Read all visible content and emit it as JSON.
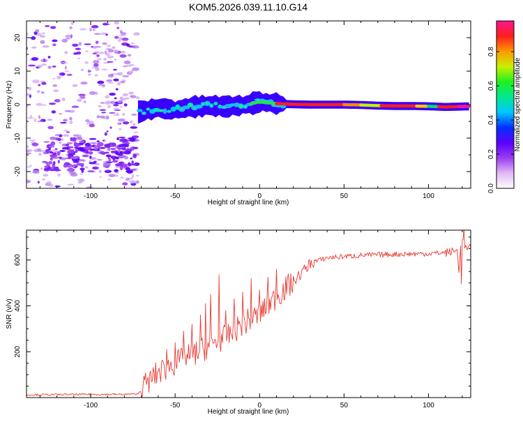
{
  "title": "KOM5.2026.039.11.10.G14",
  "chart_data": [
    {
      "type": "heatmap",
      "name": "spectrogram",
      "xlabel": "Height of straight line (km)",
      "ylabel": "Frequency (Hz)",
      "xlim": [
        -138,
        125
      ],
      "ylim": [
        -25,
        25
      ],
      "xticks": [
        -100,
        -50,
        0,
        50,
        100
      ],
      "yticks": [
        -20,
        -10,
        0,
        10,
        20
      ],
      "ridge": {
        "x": [
          -72,
          -60,
          -50,
          -40,
          -30,
          -20,
          -10,
          0,
          10,
          20,
          30,
          40,
          50,
          60,
          70,
          80,
          90,
          100,
          110,
          125
        ],
        "freq": [
          -2.2,
          -1.0,
          -1.6,
          -0.7,
          -0.3,
          -0.6,
          -0.2,
          0.8,
          0.3,
          0.1,
          0.0,
          0.0,
          0.0,
          -0.1,
          -0.3,
          -0.4,
          -0.4,
          -0.5,
          -0.7,
          -0.5
        ]
      },
      "noise_region": {
        "x_range": [
          -138,
          -72
        ],
        "cluster_center_x": -100,
        "cluster_center_freq": -15
      }
    },
    {
      "type": "colorbar",
      "label": "Normalized spectral amplitude",
      "ticks": [
        "0.0",
        "0.2",
        "0.4",
        "0.6",
        "0.8"
      ],
      "tick_values": [
        0.0,
        0.2,
        0.4,
        0.6,
        0.8
      ],
      "range": [
        0,
        0.98
      ],
      "colors": [
        "#ffffff",
        "#e0b8f4",
        "#9a3cf0",
        "#5a00ff",
        "#0030ff",
        "#00c8ff",
        "#00e890",
        "#20f020",
        "#c8f000",
        "#ff9800",
        "#ff1e1e",
        "#ff1493"
      ]
    },
    {
      "type": "line",
      "name": "snr",
      "xlabel": "Height of straight line (km)",
      "ylabel": "SNR (v/v)",
      "xlim": [
        -138,
        125
      ],
      "ylim": [
        0,
        730
      ],
      "xticks": [
        -100,
        -50,
        0,
        50,
        100
      ],
      "yticks": [
        200,
        400,
        600
      ],
      "series": [
        {
          "name": "SNR",
          "color": "#e83a32",
          "anchors_x": [
            -138,
            -120,
            -100,
            -80,
            -72,
            -68,
            -60,
            -50,
            -40,
            -30,
            -20,
            -10,
            0,
            10,
            20,
            30,
            40,
            60,
            80,
            100,
            110,
            117,
            118,
            119,
            120,
            121,
            125
          ],
          "anchors_y": [
            12,
            13,
            14,
            14,
            16,
            55,
            110,
            150,
            185,
            225,
            265,
            320,
            365,
            440,
            505,
            585,
            610,
            620,
            625,
            628,
            632,
            640,
            560,
            660,
            700,
            650,
            650
          ],
          "spikes": [
            [
              -65,
              105
            ],
            [
              -55,
              210
            ],
            [
              -50,
              240
            ],
            [
              -45,
              290
            ],
            [
              -40,
              320
            ],
            [
              -35,
              360
            ],
            [
              -32,
              410
            ],
            [
              -29,
              450
            ],
            [
              -24,
              535
            ],
            [
              -20,
              380
            ],
            [
              -15,
              430
            ],
            [
              -10,
              460
            ],
            [
              -5,
              520
            ],
            [
              0,
              470
            ],
            [
              5,
              525
            ],
            [
              10,
              560
            ],
            [
              119.5,
              495
            ],
            [
              121,
              738
            ]
          ]
        }
      ]
    }
  ]
}
